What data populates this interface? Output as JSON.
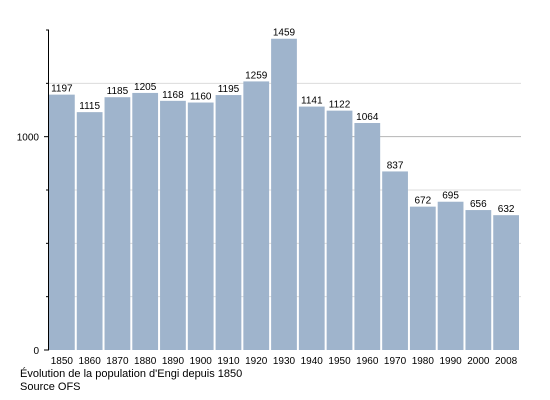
{
  "chart_data": {
    "type": "bar",
    "categories": [
      "1850",
      "1860",
      "1870",
      "1880",
      "1890",
      "1900",
      "1910",
      "1920",
      "1930",
      "1940",
      "1950",
      "1960",
      "1970",
      "1980",
      "1990",
      "2000",
      "2008"
    ],
    "values": [
      1197,
      1115,
      1185,
      1205,
      1168,
      1160,
      1195,
      1259,
      1459,
      1141,
      1122,
      1064,
      837,
      672,
      695,
      656,
      632
    ],
    "title": "",
    "xlabel": "",
    "ylabel": "",
    "ylim": [
      0,
      1500
    ],
    "yticks": [
      "0",
      "1000"
    ],
    "grid": true,
    "bar_color": "#9fb4cc",
    "grid_color": "#dcdcdc"
  },
  "caption": {
    "line1": "Évolution de la population d'Engi depuis 1850",
    "line2": "Source OFS"
  }
}
